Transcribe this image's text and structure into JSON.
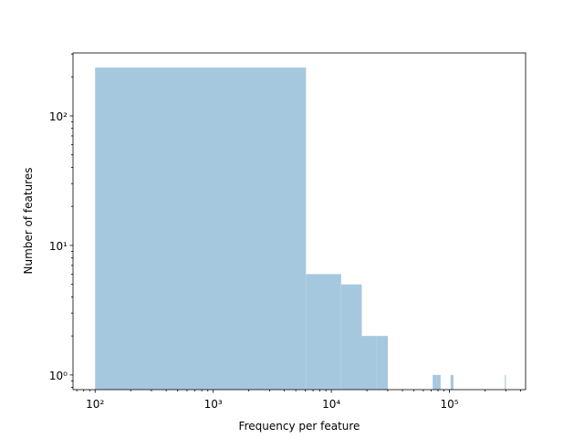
{
  "chart_data": {
    "type": "histogram",
    "x_label": "Frequency per feature",
    "y_label": "Number of features",
    "bins": [
      100,
      6100,
      12100,
      18100,
      24100,
      30100,
      36100,
      42100,
      48100,
      54100,
      60100,
      66100,
      72100,
      78100,
      84100,
      90100,
      96100,
      102100,
      108100,
      114100,
      120100,
      126100,
      132100,
      138100,
      144100,
      150100,
      156100,
      162100,
      168100,
      174100,
      180100,
      186100,
      192100,
      198100,
      204100,
      210100,
      216100,
      222100,
      228100,
      234100,
      240100,
      246100,
      252100,
      258100,
      264100,
      270100,
      276100,
      282100,
      288100,
      294100,
      300100
    ],
    "counts": [
      236,
      6,
      5,
      2,
      2,
      0,
      0,
      0,
      0,
      0,
      0,
      0,
      1,
      1,
      0,
      0,
      0,
      1,
      0,
      0,
      0,
      0,
      0,
      0,
      0,
      0,
      0,
      0,
      0,
      0,
      0,
      0,
      0,
      0,
      0,
      0,
      0,
      0,
      0,
      0,
      0,
      0,
      0,
      0,
      0,
      0,
      0,
      0,
      0,
      1
    ],
    "color": "#a6c8df",
    "xscale": "log",
    "yscale": "log",
    "xlim": [
      65,
      441000
    ],
    "ylim": [
      0.77,
      306
    ],
    "xticks": [
      {
        "value": 100,
        "label": "10²"
      },
      {
        "value": 1000,
        "label": "10³"
      },
      {
        "value": 10000,
        "label": "10⁴"
      },
      {
        "value": 100000,
        "label": "10⁵"
      }
    ],
    "yticks": [
      {
        "value": 1,
        "label": "10⁰"
      },
      {
        "value": 10,
        "label": "10¹"
      },
      {
        "value": 100,
        "label": "10²"
      }
    ]
  }
}
